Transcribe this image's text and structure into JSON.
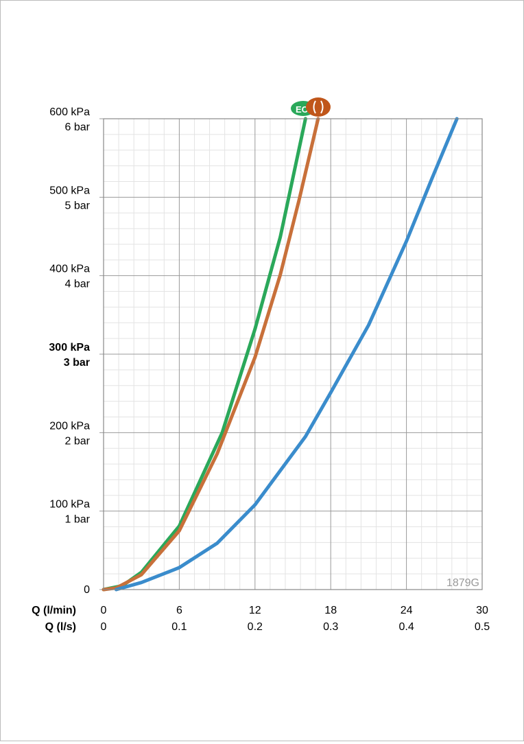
{
  "chart_data": {
    "type": "line",
    "x_label": "Q (l/min)",
    "x2_label": "Q (l/s)",
    "xlim": [
      0,
      30
    ],
    "xticks": [
      0,
      6,
      12,
      18,
      24,
      30
    ],
    "x2lim": [
      0,
      0.5
    ],
    "x2ticks": [
      0,
      0.1,
      0.2,
      0.3,
      0.4,
      0.5
    ],
    "ylim": [
      0,
      600
    ],
    "yticks": [
      0,
      {
        "value": 100,
        "label": "100 kPa"
      },
      {
        "value": 200,
        "label": "200 kPa"
      },
      {
        "value": 300,
        "label": "300 kPa"
      },
      {
        "value": 400,
        "label": "400 kPa"
      },
      {
        "value": 500,
        "label": "500 kPa"
      },
      {
        "value": 600,
        "label": "600 kPa"
      }
    ],
    "y2lim": [
      0,
      6
    ],
    "y2ticks": [
      {
        "value": 1,
        "label": "1 bar"
      },
      {
        "value": 2,
        "label": "2 bar"
      },
      {
        "value": 3,
        "label": "3 bar"
      },
      {
        "value": 4,
        "label": "4 bar"
      },
      {
        "value": 5,
        "label": "5 bar"
      },
      {
        "value": 6,
        "label": "6 bar"
      }
    ],
    "bold_ytick": 300,
    "grid": true,
    "minor_grid": true,
    "annotation": "1879G",
    "icon_text": "EC",
    "series": [
      {
        "color": "#2aa85a",
        "x": [
          0,
          1.5,
          3,
          6,
          9.4,
          12,
          14,
          16
        ],
        "values": [
          0,
          5,
          22,
          81,
          200,
          332,
          449,
          600
        ]
      },
      {
        "color": "#c8703a",
        "x": [
          0,
          1,
          3,
          6,
          9,
          12,
          14,
          15.5,
          17
        ],
        "values": [
          0,
          2,
          19,
          75,
          173,
          296,
          401,
          497,
          600
        ]
      },
      {
        "color": "#3a8ccc",
        "x": [
          1,
          3,
          6,
          9,
          12,
          16,
          18,
          21,
          24,
          26,
          28
        ],
        "values": [
          0,
          9,
          28,
          59,
          108,
          195,
          251,
          337,
          444,
          523,
          600
        ]
      }
    ]
  }
}
